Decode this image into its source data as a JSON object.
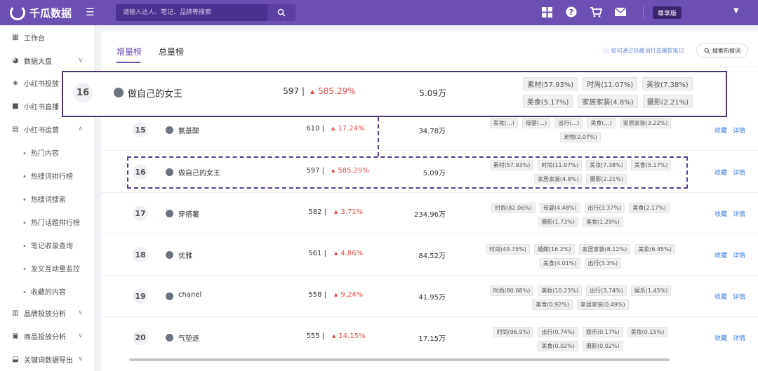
{
  "header": {
    "brand": "千瓜数据",
    "search_placeholder": "请输入达人、笔记、品牌等搜索",
    "vip_label": "尊享版",
    "icons": [
      "grid-icon",
      "help-icon",
      "cart-icon",
      "mail-icon"
    ]
  },
  "sidebar": {
    "items": [
      {
        "label": "工作台",
        "icon": "dashboard-icon"
      },
      {
        "label": "数据大盘",
        "icon": "pie-icon",
        "arrow": "∨"
      },
      {
        "label": "小红书投放",
        "icon": "layers-icon"
      },
      {
        "label": "小红书直播",
        "icon": "video-icon"
      },
      {
        "label": "小红书运营",
        "icon": "chart-icon",
        "arrow": "∧"
      }
    ],
    "sub_items": [
      "热门内容",
      "热搜词排行榜",
      "热搜词搜索",
      "热门话题排行榜",
      "笔记收录查询",
      "发文互动量监控",
      "收藏的内容"
    ],
    "bottom_items": [
      {
        "label": "品牌投放分析",
        "icon": "bar-chart-icon",
        "arrow": "∨"
      },
      {
        "label": "商品投放分析",
        "icon": "goods-icon",
        "arrow": "∨"
      },
      {
        "label": "关键词数据导出",
        "icon": "export-icon",
        "arrow": "∨"
      }
    ]
  },
  "tabs": [
    {
      "label": "增量榜",
      "active": true
    },
    {
      "label": "总量榜",
      "active": false
    }
  ],
  "help_link": "如何通过热搜词打造爆款笔记",
  "hot_search_button": "搜索热搜词",
  "actions": {
    "collect": "收藏",
    "detail": "详情"
  },
  "rows": [
    {
      "rank": "15",
      "keyword": "氨基酸",
      "count": "610 |",
      "change": "17.24%",
      "volume": "34.78万",
      "tags": [
        "美妆(…)",
        "母婴(…)",
        "出行(…)",
        "美食(…)",
        "家居家装(3.22%)",
        "宠物(2.07%)"
      ]
    },
    {
      "rank": "16",
      "keyword": "做自己的女王",
      "count": "597 |",
      "change": "585.29%",
      "volume": "5.09万",
      "tags": [
        "素材(57.93%)",
        "时尚(11.07%)",
        "美妆(7.38%)",
        "美食(5.17%)",
        "家居家装(4.8%)",
        "摄影(2.21%)"
      ]
    },
    {
      "rank": "17",
      "keyword": "穿搭薯",
      "count": "582 |",
      "change": "3.71%",
      "volume": "234.96万",
      "tags": [
        "时尚(82.06%)",
        "母婴(4.48%)",
        "出行(3.37%)",
        "美食(2.17%)",
        "摄影(1.73%)",
        "美妆(1.29%)"
      ]
    },
    {
      "rank": "18",
      "keyword": "优雅",
      "count": "561 |",
      "change": "4.86%",
      "volume": "84.52万",
      "tags": [
        "时尚(49.75%)",
        "婚嫁(16.2%)",
        "家居家装(8.12%)",
        "美妆(6.45%)",
        "美食(4.01%)",
        "出行(3.3%)"
      ]
    },
    {
      "rank": "19",
      "keyword": "chanel",
      "count": "558 |",
      "change": "9.24%",
      "volume": "41.95万",
      "tags": [
        "时尚(80.68%)",
        "美妆(10.23%)",
        "出行(3.74%)",
        "娱乐(1.45%)",
        "美食(0.92%)",
        "家居家装(0.49%)"
      ]
    },
    {
      "rank": "20",
      "keyword": "气垫逐",
      "count": "555 |",
      "change": "14.15%",
      "volume": "17.15万",
      "tags": [
        "时尚(96.9%)",
        "出行(0.74%)",
        "娱乐(0.17%)",
        "美妆(0.15%)",
        "美食(0.02%)",
        "摄影(0.02%)"
      ]
    }
  ],
  "zoom": {
    "rank": "16",
    "keyword": "做自己的女王",
    "count": "597 |",
    "change": "585.29%",
    "volume": "5.09万",
    "tags": [
      "素材(57.93%)",
      "时尚(11.07%)",
      "美妆(7.38%)",
      "美食(5.17%)",
      "家居家装(4.8%)",
      "摄影(2.21%)"
    ]
  },
  "colors": {
    "header_bg": "#6c4fb3",
    "accent": "#6c4fb3",
    "up": "#e24f4f",
    "link": "#3f7de0"
  }
}
